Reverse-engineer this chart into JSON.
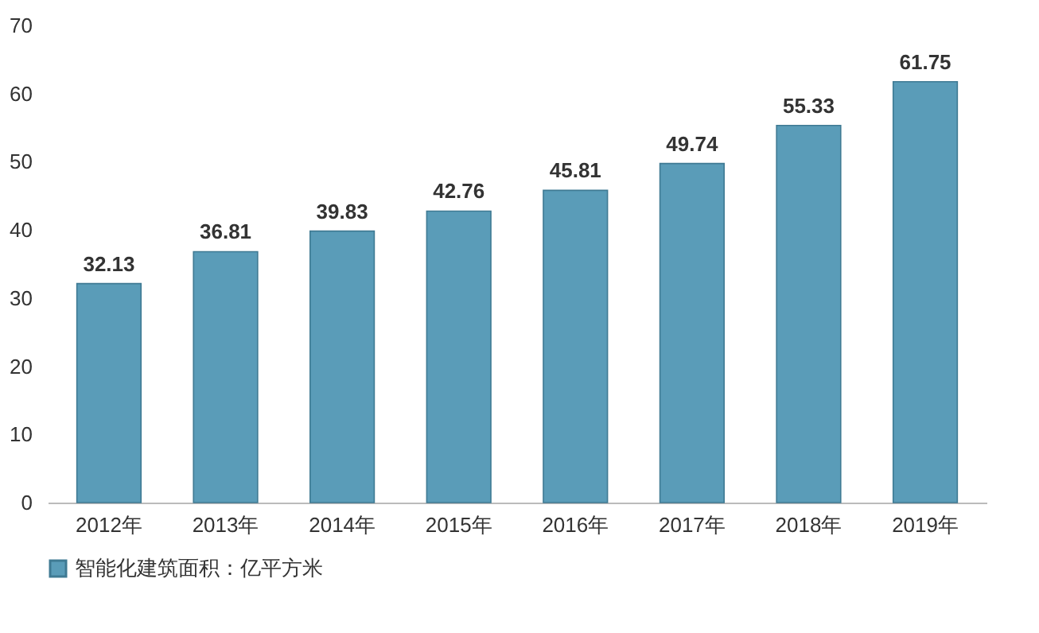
{
  "chart_data": {
    "type": "bar",
    "categories": [
      "2012年",
      "2013年",
      "2014年",
      "2015年",
      "2016年",
      "2017年",
      "2018年",
      "2019年"
    ],
    "series": [
      {
        "name": "智能化建筑面积：亿平方米",
        "color": "#5a9cb8",
        "values": [
          32.13,
          36.81,
          39.83,
          42.76,
          45.81,
          49.74,
          55.33,
          61.75
        ]
      }
    ],
    "ylim": [
      0,
      70
    ],
    "yticks": [
      0,
      10,
      20,
      30,
      40,
      50,
      60,
      70
    ],
    "grid": false,
    "legend": "bottom",
    "data_labels": true
  }
}
